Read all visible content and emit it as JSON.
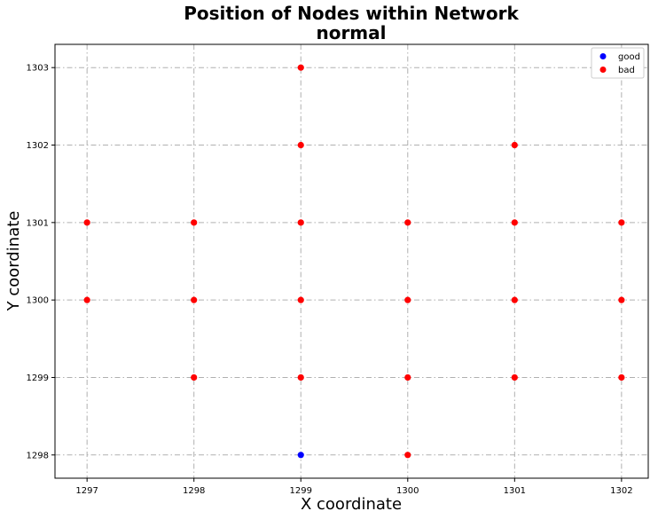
{
  "chart_data": {
    "type": "scatter",
    "title": "Position of Nodes within Network",
    "subtitle": "normal",
    "xlabel": "X coordinate",
    "ylabel": "Y coordinate",
    "xlim": [
      1296.7,
      1302.25
    ],
    "ylim": [
      1297.7,
      1303.3
    ],
    "xticks": [
      1297,
      1298,
      1299,
      1300,
      1301,
      1302
    ],
    "yticks": [
      1298,
      1299,
      1300,
      1301,
      1302,
      1303
    ],
    "grid": true,
    "legend_position": "top-right",
    "series": [
      {
        "name": "good",
        "color": "#0000ff",
        "points": [
          [
            1299,
            1298
          ]
        ]
      },
      {
        "name": "bad",
        "color": "#ff0000",
        "points": [
          [
            1299,
            1303
          ],
          [
            1299,
            1302
          ],
          [
            1301,
            1302
          ],
          [
            1297,
            1301
          ],
          [
            1298,
            1301
          ],
          [
            1299,
            1301
          ],
          [
            1300,
            1301
          ],
          [
            1301,
            1301
          ],
          [
            1302,
            1301
          ],
          [
            1297,
            1300
          ],
          [
            1298,
            1300
          ],
          [
            1299,
            1300
          ],
          [
            1300,
            1300
          ],
          [
            1301,
            1300
          ],
          [
            1302,
            1300
          ],
          [
            1298,
            1299
          ],
          [
            1299,
            1299
          ],
          [
            1300,
            1299
          ],
          [
            1301,
            1299
          ],
          [
            1302,
            1299
          ],
          [
            1300,
            1298
          ]
        ]
      }
    ]
  }
}
